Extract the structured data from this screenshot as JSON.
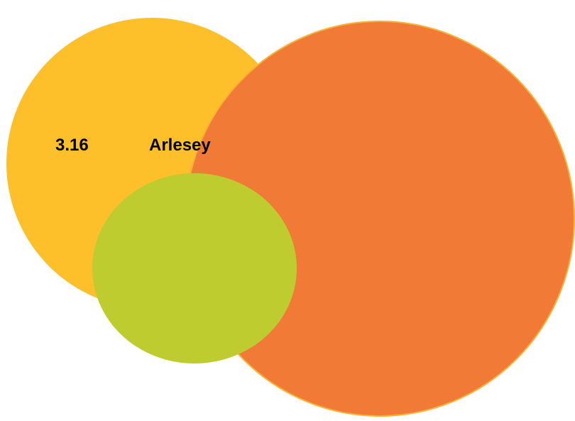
{
  "section": {
    "number": "3.16",
    "name": "Arlesey"
  },
  "colors": {
    "background": "#ffffff",
    "yellow_circle": "#fdbf2a",
    "orange_circle": "#f17b36",
    "orange_outline": "#f9b233",
    "green_ellipse": "#bfcc2f",
    "text": "#000000"
  }
}
